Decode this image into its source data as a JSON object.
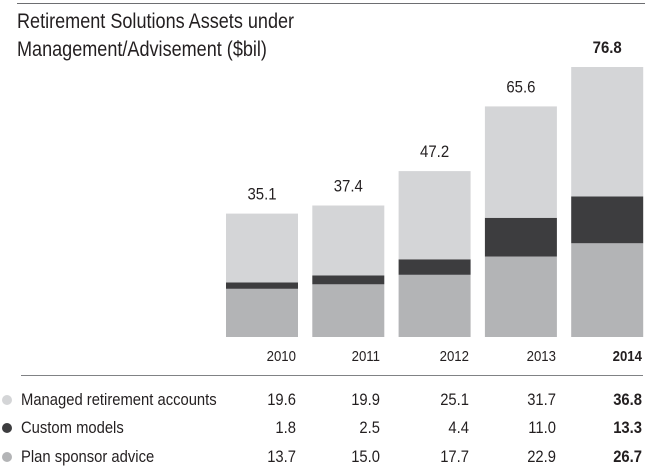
{
  "chart_data": {
    "type": "bar",
    "stacked": true,
    "title": "Retirement Solutions Assets under Management/Advisement ($bil)",
    "title_lines": [
      "Retirement Solutions Assets under",
      "Management/Advisement ($bil)"
    ],
    "xlabel": "",
    "ylabel": "",
    "ylim": [
      0,
      76.8
    ],
    "grid": false,
    "legend_placement": "bottom-table",
    "categories": [
      "2010",
      "2011",
      "2012",
      "2013",
      "2014"
    ],
    "highlight_category": "2014",
    "totals": [
      "35.1",
      "37.4",
      "47.2",
      "65.6",
      "76.8"
    ],
    "total_values": [
      35.1,
      37.4,
      47.2,
      65.6,
      76.8
    ],
    "series": [
      {
        "name": "Managed retirement accounts",
        "color": "#d4d5d7",
        "values": [
          19.6,
          19.9,
          25.1,
          31.7,
          36.8
        ],
        "labels": [
          "19.6",
          "19.9",
          "25.1",
          "31.7",
          "36.8"
        ]
      },
      {
        "name": "Custom models",
        "color": "#3d3d3f",
        "values": [
          1.8,
          2.5,
          4.4,
          11.0,
          13.3
        ],
        "labels": [
          "1.8",
          "2.5",
          "4.4",
          "11.0",
          "13.3"
        ]
      },
      {
        "name": "Plan sponsor advice",
        "color": "#b3b4b6",
        "values": [
          13.7,
          15.0,
          17.7,
          22.9,
          26.7
        ],
        "labels": [
          "13.7",
          "15.0",
          "17.7",
          "22.9",
          "26.7"
        ]
      }
    ],
    "stack_order_bottom_to_top": [
      2,
      1,
      0
    ]
  }
}
